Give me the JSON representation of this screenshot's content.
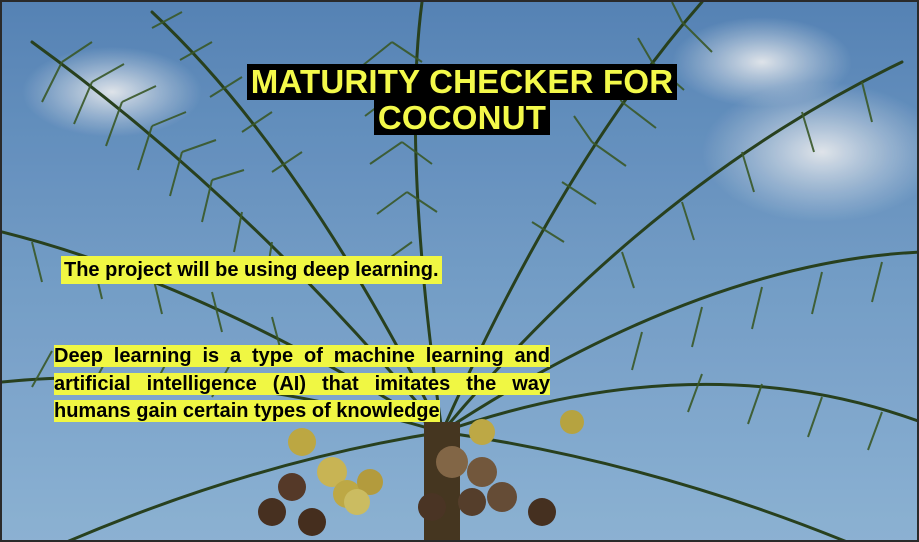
{
  "slide": {
    "title_line_1": "MATURITY CHECKER FOR",
    "title_line_2": "COCONUT",
    "intro": "The project will be using deep learning.",
    "definition": "Deep learning is a type of machine learning and artificial intelligence (AI) that imitates the way humans gain certain types of knowledge",
    "background": "coconut-palm-tree-photo"
  },
  "colors": {
    "highlight": "#f0f743",
    "title_text": "#f3f94a",
    "title_background": "#000000",
    "sky": "#6f9cc9",
    "palm_fronds": "#2f4a22",
    "coconut": "#c9b34a"
  }
}
